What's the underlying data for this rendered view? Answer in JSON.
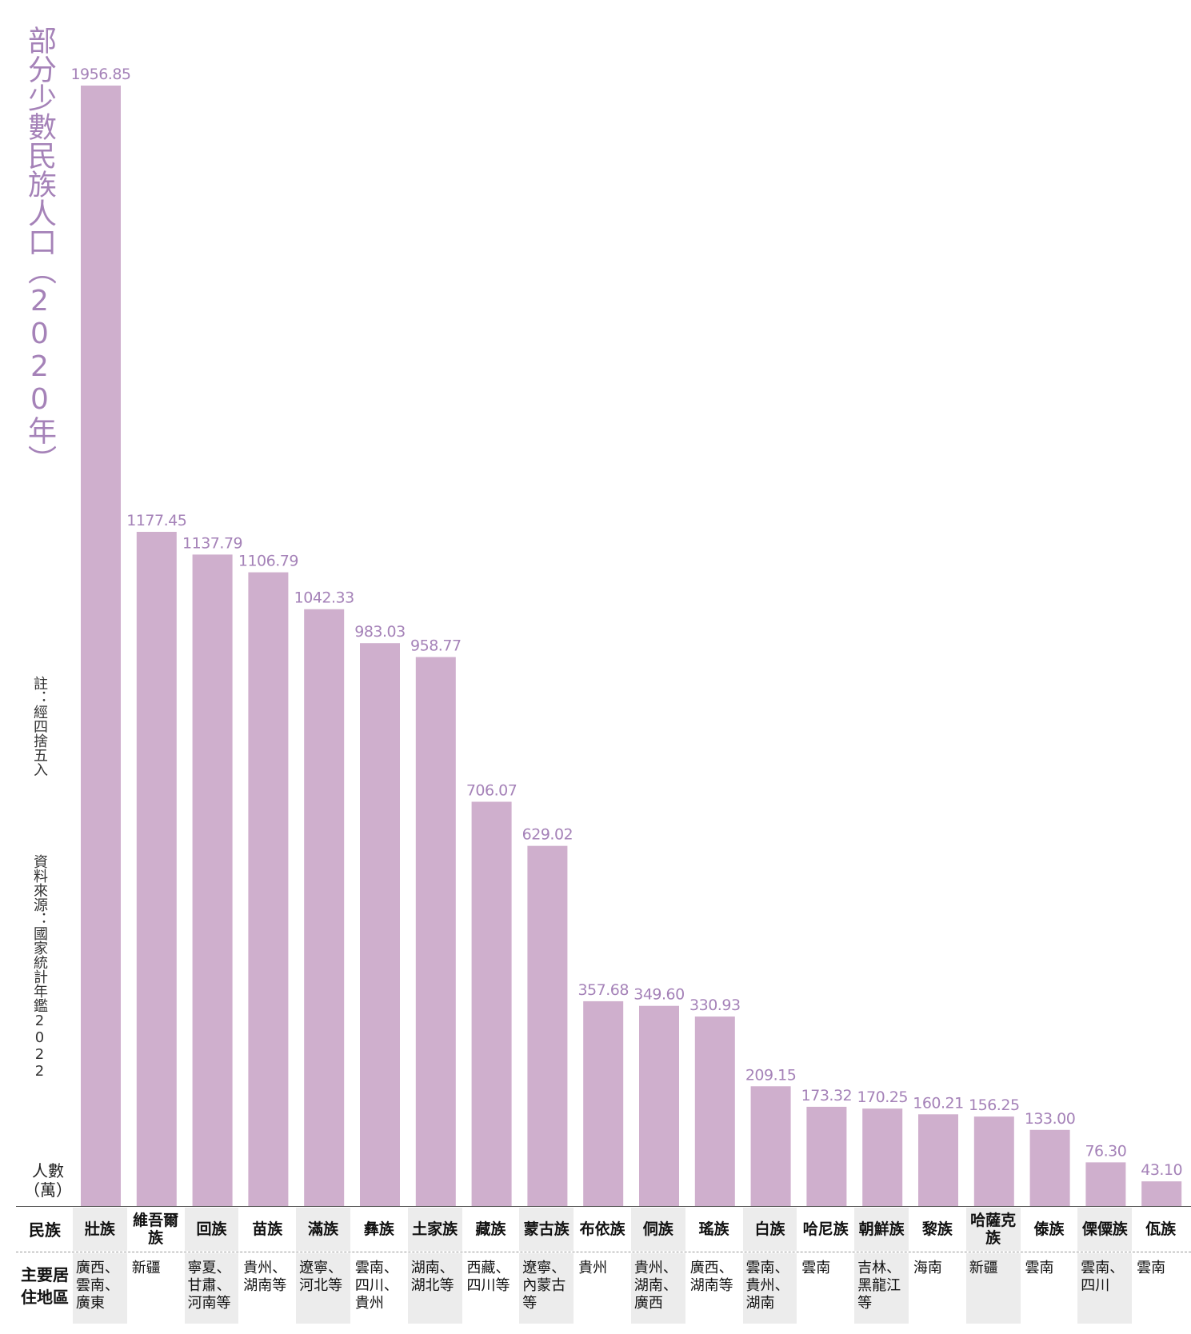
{
  "title": "部分少數民族人口（2020年）",
  "notes": {
    "rounding": "註：經四捨五入",
    "source": "資料來源：國家統計年鑑2022"
  },
  "unit_label": "人數（萬）",
  "row_labels": {
    "ethnicity": "民族",
    "region": "主要居住地區"
  },
  "colors": {
    "bar": "#cfafcd",
    "value_label": "#a582b8",
    "title": "#a582b8"
  },
  "chart_data": {
    "type": "bar",
    "title": "部分少數民族人口（2020年）",
    "ylabel": "人數（萬）",
    "xlabel": "民族",
    "ylim": [
      0,
      1956.85
    ],
    "grid": false,
    "categories": [
      "壯族",
      "維吾爾族",
      "回族",
      "苗族",
      "滿族",
      "彝族",
      "土家族",
      "藏族",
      "蒙古族",
      "布依族",
      "侗族",
      "瑤族",
      "白族",
      "哈尼族",
      "朝鮮族",
      "黎族",
      "哈薩克族",
      "傣族",
      "傈僳族",
      "佤族"
    ],
    "values": [
      1956.85,
      1177.45,
      1137.79,
      1106.79,
      1042.33,
      983.03,
      958.77,
      706.07,
      629.02,
      357.68,
      349.6,
      330.93,
      209.15,
      173.32,
      170.25,
      160.21,
      156.25,
      133.0,
      76.3,
      43.1
    ],
    "value_labels": [
      "1956.85",
      "1177.45",
      "1137.79",
      "1106.79",
      "1042.33",
      "983.03",
      "958.77",
      "706.07",
      "629.02",
      "357.68",
      "349.60",
      "330.93",
      "209.15",
      "173.32",
      "170.25",
      "160.21",
      "156.25",
      "133.00",
      "76.30",
      "43.10"
    ],
    "regions": [
      "廣西、雲南、廣東",
      "新疆",
      "寧夏、甘肅、河南等",
      "貴州、湖南等",
      "遼寧、河北等",
      "雲南、四川、貴州",
      "湖南、湖北等",
      "西藏、四川等",
      "遼寧、內蒙古等",
      "貴州",
      "貴州、湖南、廣西",
      "廣西、湖南等",
      "雲南、貴州、湖南",
      "雲南",
      "吉林、黑龍江等",
      "海南",
      "新疆",
      "雲南",
      "雲南、四川",
      "雲南"
    ]
  }
}
